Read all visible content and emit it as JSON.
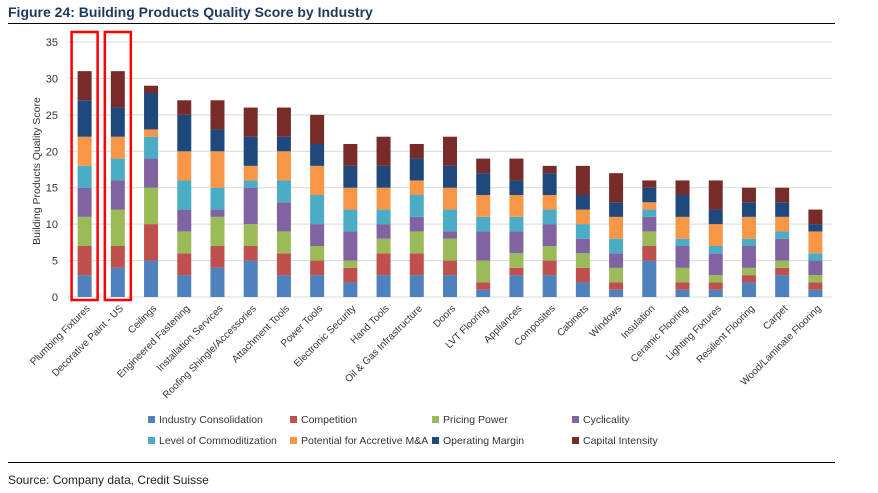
{
  "figure_title": "Figure 24: Building Products Quality Score by Industry",
  "source": "Source: Company data, Credit Suisse",
  "chart_data": {
    "type": "bar",
    "stacked": true,
    "ylabel": "Building Products Quality Score",
    "xlabel": "",
    "ylim": [
      0,
      35
    ],
    "yticks": [
      0,
      5,
      10,
      15,
      20,
      25,
      30,
      35
    ],
    "grid": true,
    "legend_position": "bottom",
    "highlighted_categories": [
      "Plumbing Fixtures",
      "Decorative Paint - US"
    ],
    "highlight_color": "#ff0000",
    "categories": [
      "Plumbing Fixtures",
      "Decorative Paint - US",
      "Ceilings",
      "Engineered Fastening",
      "Installation Services",
      "Roofing Shingle/Accessories",
      "Attachment Tools",
      "Power Tools",
      "Electronic Security",
      "Hand Tools",
      "Oil & Gas Infrastructure",
      "Doors",
      "LVT Flooring",
      "Appliances",
      "Composites",
      "Cabinets",
      "Windows",
      "Insulation",
      "Ceramic Flooring",
      "Lighting Fixtures",
      "Resilient Flooring",
      "Carpet",
      "Wood/Laminate Flooring"
    ],
    "series": [
      {
        "name": "Industry Consolidation",
        "color": "#4f81bd",
        "values": [
          3,
          4,
          5,
          3,
          4,
          5,
          3,
          3,
          2,
          3,
          3,
          3,
          1,
          3,
          3,
          2,
          1,
          5,
          1,
          1,
          2,
          3,
          1
        ]
      },
      {
        "name": "Competition",
        "color": "#c0504d",
        "values": [
          4,
          3,
          5,
          3,
          3,
          2,
          3,
          2,
          2,
          3,
          3,
          2,
          1,
          1,
          2,
          2,
          1,
          2,
          1,
          1,
          1,
          1,
          1
        ]
      },
      {
        "name": "Pricing Power",
        "color": "#9bbb59",
        "values": [
          4,
          5,
          5,
          3,
          4,
          3,
          3,
          2,
          1,
          2,
          3,
          3,
          3,
          2,
          2,
          2,
          2,
          2,
          2,
          1,
          1,
          1,
          1
        ]
      },
      {
        "name": "Cyclicality",
        "color": "#8064a2",
        "values": [
          4,
          4,
          4,
          3,
          1,
          5,
          4,
          3,
          4,
          2,
          2,
          1,
          4,
          3,
          3,
          2,
          2,
          2,
          3,
          3,
          3,
          3,
          2
        ]
      },
      {
        "name": "Level of Commoditization",
        "color": "#4bacc6",
        "values": [
          3,
          3,
          3,
          4,
          3,
          1,
          3,
          4,
          3,
          2,
          3,
          3,
          2,
          2,
          2,
          2,
          2,
          1,
          1,
          1,
          1,
          1,
          1
        ]
      },
      {
        "name": "Potential for Accretive M&A",
        "color": "#f79646",
        "values": [
          4,
          3,
          1,
          4,
          5,
          2,
          4,
          4,
          3,
          3,
          2,
          3,
          3,
          3,
          2,
          2,
          3,
          1,
          3,
          3,
          3,
          2,
          3
        ]
      },
      {
        "name": "Operating Margin",
        "color": "#1f497d",
        "values": [
          5,
          4,
          5,
          5,
          3,
          4,
          2,
          3,
          3,
          3,
          3,
          3,
          3,
          2,
          3,
          2,
          2,
          2,
          3,
          2,
          2,
          2,
          1
        ]
      },
      {
        "name": "Capital Intensity",
        "color": "#772c2a",
        "values": [
          4,
          5,
          1,
          2,
          4,
          4,
          4,
          4,
          3,
          4,
          2,
          4,
          2,
          3,
          1,
          4,
          4,
          1,
          2,
          4,
          2,
          2,
          2
        ]
      }
    ]
  }
}
